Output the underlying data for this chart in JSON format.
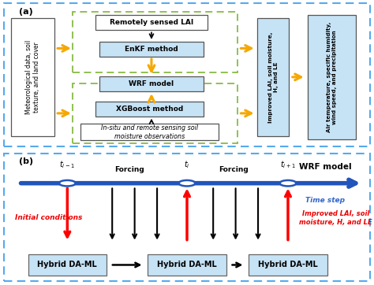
{
  "fig_width": 4.74,
  "fig_height": 3.62,
  "dpi": 100,
  "dashed_blue": "#55AAEE",
  "dashed_green": "#88BB44",
  "arrow_orange": "#F5A800",
  "box_light_blue": "#C6E2F5",
  "box_white": "#FFFFFF",
  "text_red": "#EE0000",
  "text_blue": "#3366CC",
  "timeline_blue": "#2255BB",
  "panel_a_label": "(a)",
  "panel_b_label": "(b)",
  "wrf_model_label": "WRF model",
  "time_step_label": "Time step",
  "initial_conditions_label": "Initial conditions",
  "improved_label": "Improved LAI, soil\nmoisture, H, and LE",
  "forcing_label": "Forcing",
  "hybrid_daml_label": "Hybrid DA-ML"
}
